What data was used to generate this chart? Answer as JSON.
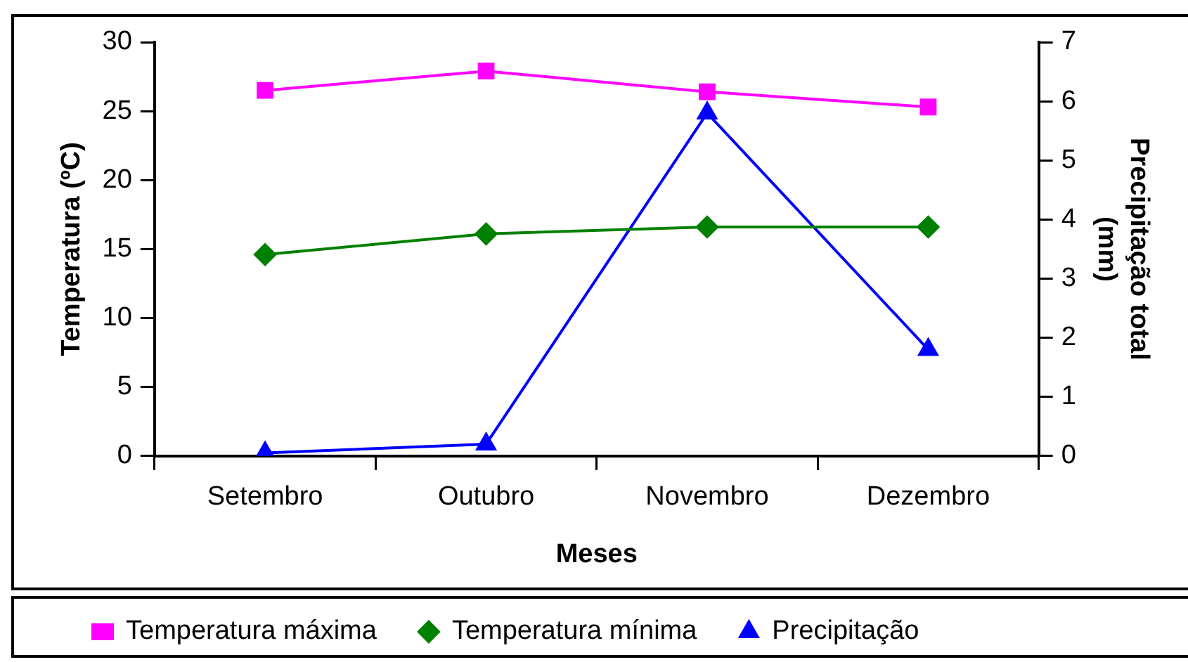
{
  "chart_data": {
    "type": "line",
    "xlabel": "Meses",
    "ylabel": "Temperatura (ºC)",
    "y2label": "Precipitação total (mm)",
    "categories": [
      "Setembro",
      "Outubro",
      "Novembro",
      "Dezembro"
    ],
    "series": [
      {
        "name": "Temperatura máxima",
        "color": "#ff00ff",
        "marker": "square",
        "values": [
          26.5,
          27.9,
          26.4,
          25.3
        ]
      },
      {
        "name": "Temperatura mínima",
        "color": "#008000",
        "marker": "diamond",
        "values": [
          14.6,
          16.1,
          16.6,
          16.6
        ]
      },
      {
        "name": "Precipitação",
        "color": "#0000ff",
        "marker": "triangle",
        "axis": "y2",
        "values": [
          0.05,
          0.2,
          5.8,
          1.8
        ]
      }
    ],
    "ylim": [
      0,
      30
    ],
    "yticks": [
      0,
      5,
      10,
      15,
      20,
      25,
      30
    ],
    "y2lim": [
      0,
      7
    ],
    "y2ticks": [
      0,
      1,
      2,
      3,
      4,
      5,
      6,
      7
    ],
    "grid": false,
    "legend": "bottom",
    "line_style": "solid"
  }
}
